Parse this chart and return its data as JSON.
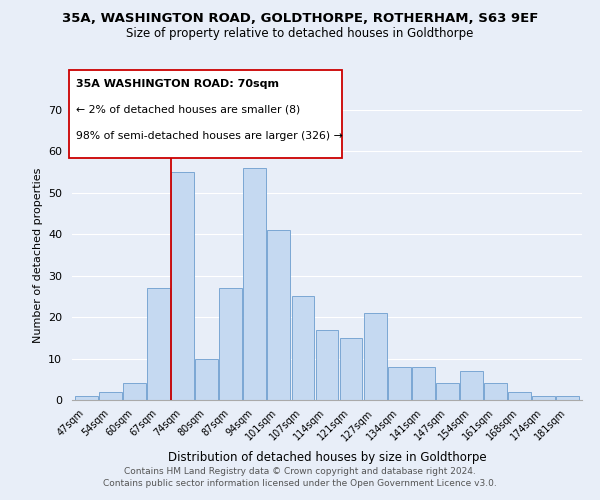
{
  "title": "35A, WASHINGTON ROAD, GOLDTHORPE, ROTHERHAM, S63 9EF",
  "subtitle": "Size of property relative to detached houses in Goldthorpe",
  "xlabel": "Distribution of detached houses by size in Goldthorpe",
  "ylabel": "Number of detached properties",
  "bar_labels": [
    "47sqm",
    "54sqm",
    "60sqm",
    "67sqm",
    "74sqm",
    "80sqm",
    "87sqm",
    "94sqm",
    "101sqm",
    "107sqm",
    "114sqm",
    "121sqm",
    "127sqm",
    "134sqm",
    "141sqm",
    "147sqm",
    "154sqm",
    "161sqm",
    "168sqm",
    "174sqm",
    "181sqm"
  ],
  "bar_values": [
    1,
    2,
    4,
    27,
    55,
    10,
    27,
    56,
    41,
    25,
    17,
    15,
    21,
    8,
    8,
    4,
    7,
    4,
    2,
    1,
    1
  ],
  "bar_color": "#c5d9f1",
  "bar_edge_color": "#7ba7d4",
  "ylim": [
    0,
    70
  ],
  "yticks": [
    0,
    10,
    20,
    30,
    40,
    50,
    60,
    70
  ],
  "vline_index": 3.5,
  "vline_color": "#cc0000",
  "annotation_title": "35A WASHINGTON ROAD: 70sqm",
  "annotation_line1": "← 2% of detached houses are smaller (8)",
  "annotation_line2": "98% of semi-detached houses are larger (326) →",
  "footer_line1": "Contains HM Land Registry data © Crown copyright and database right 2024.",
  "footer_line2": "Contains public sector information licensed under the Open Government Licence v3.0.",
  "background_color": "#e8eef8"
}
